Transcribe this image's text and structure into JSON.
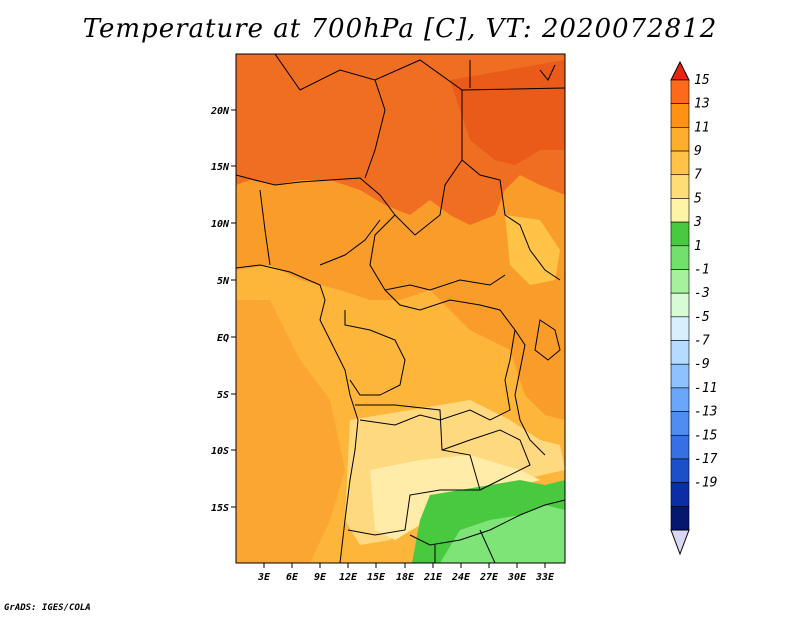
{
  "title": "Temperature at 700hPa [C], VT: 2020072812",
  "credit": "GrADS: IGES/COLA",
  "lat_ticks": [
    "20N",
    "15N",
    "10N",
    "5N",
    "EQ",
    "5S",
    "10S",
    "15S"
  ],
  "lon_ticks": [
    "3E",
    "6E",
    "9E",
    "12E",
    "15E",
    "18E",
    "21E",
    "24E",
    "27E",
    "30E",
    "33E"
  ],
  "colorbar": {
    "labels": [
      "15",
      "13",
      "11",
      "9",
      "7",
      "5",
      "3",
      "1",
      "-1",
      "-3",
      "-5",
      "-7",
      "-9",
      "-11",
      "-13",
      "-15",
      "-17",
      "-19"
    ],
    "colors": [
      "#ff6a1a",
      "#ff9212",
      "#ffad2c",
      "#ffc447",
      "#ffdd75",
      "#fff3a4",
      "#49c93f",
      "#72e169",
      "#a4f29b",
      "#d7fbd3",
      "#d7f0ff",
      "#b4dcff",
      "#8cc2ff",
      "#6aa7fa",
      "#4f8df0",
      "#3670e4",
      "#1c50c8",
      "#0b2ea6",
      "#05176e"
    ],
    "top_color": "#e82311",
    "bottom_color": "#d8d8f4"
  },
  "fields": {
    "hot": "#f06e22",
    "warm": "#fa9c29",
    "mild": "#fdb53a",
    "pale": "#ffd980",
    "cream": "#ffeca8",
    "green": "#48c93f",
    "light_green": "#7fe477",
    "boundary": "#000000"
  }
}
